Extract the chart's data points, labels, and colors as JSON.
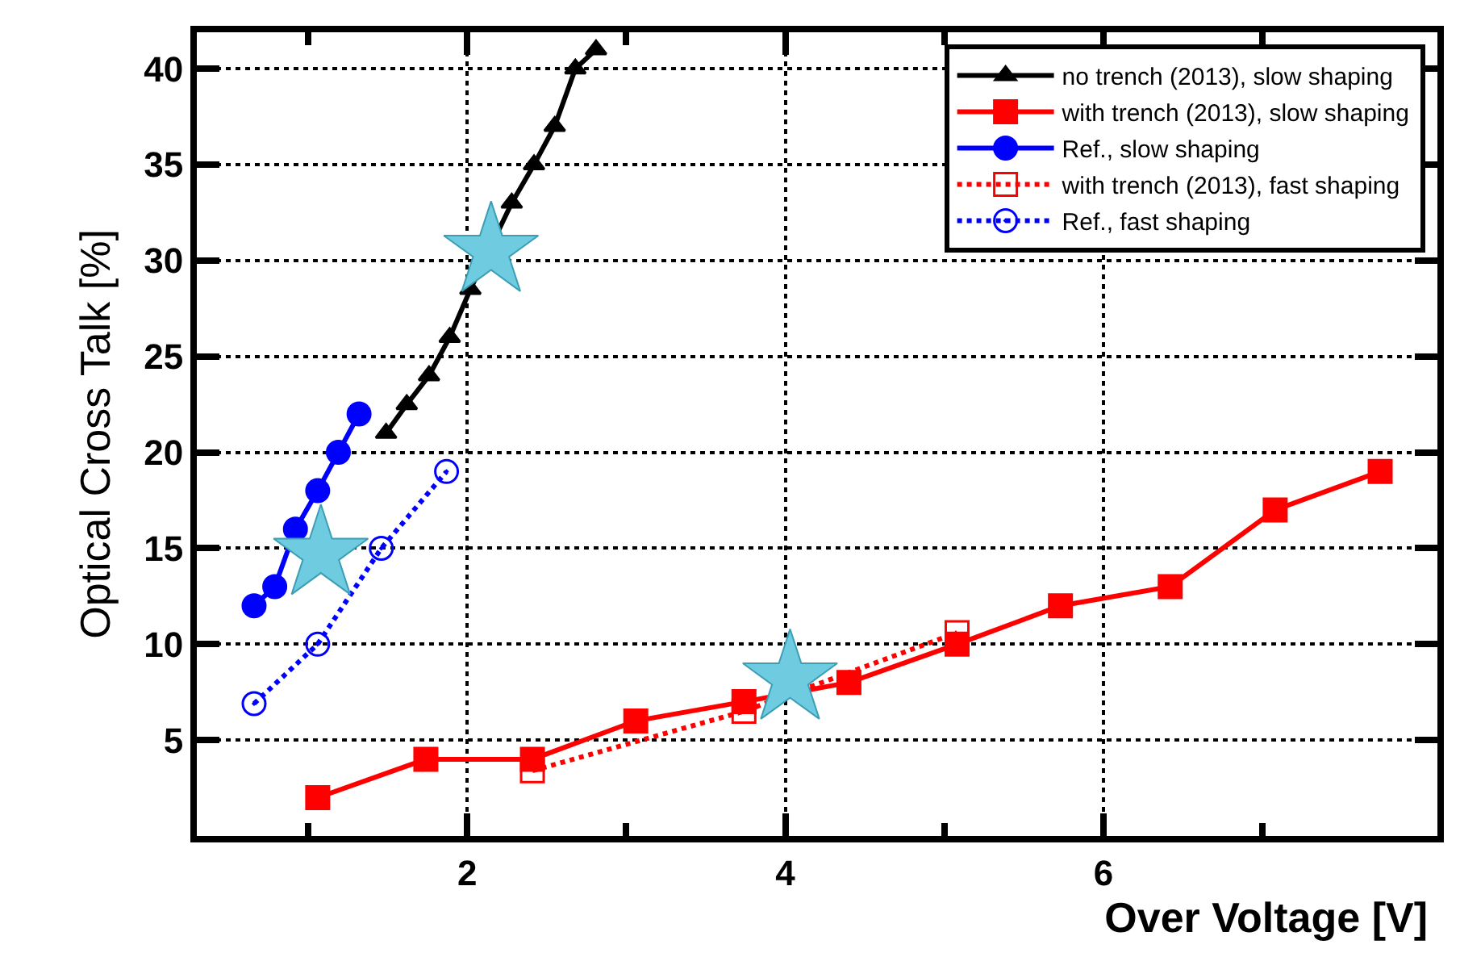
{
  "chart_data": {
    "type": "line",
    "xlabel": "Over Voltage [V]",
    "ylabel": "Optical Cross Talk [%]",
    "xlim": [
      0.3,
      8.1
    ],
    "xticks": [
      {
        "value": 1,
        "label": null
      },
      2,
      {
        "value": 3,
        "label": null
      },
      4,
      {
        "value": 5,
        "label": null
      },
      6,
      {
        "value": 7,
        "label": null
      }
    ],
    "ylim": [
      0,
      41.9
    ],
    "yticks": [
      5,
      10,
      15,
      20,
      25,
      30,
      35,
      40
    ],
    "grid": true,
    "legend": "top right",
    "series": [
      {
        "name": "no trench (2013), slow shaping",
        "color": "#000000",
        "marker": "triangle",
        "line_style": "solid",
        "x": [
          1.49,
          1.62,
          1.76,
          1.89,
          2.02,
          2.15,
          2.28,
          2.42,
          2.55,
          2.68,
          2.81
        ],
        "values": [
          21,
          22.5,
          24,
          26,
          28.5,
          null,
          33,
          35,
          37,
          40,
          41
        ]
      },
      {
        "name": "with trench (2013), slow shaping",
        "color": "#ff0000",
        "marker": "square",
        "line_style": "solid",
        "x": [
          1.06,
          1.74,
          2.41,
          3.06,
          3.74,
          4.4,
          5.08,
          5.73,
          6.42,
          7.08,
          7.74
        ],
        "values": [
          2,
          4,
          4,
          6,
          7,
          8,
          10,
          12,
          13,
          17,
          19
        ]
      },
      {
        "name": "Ref., slow shaping",
        "color": "#0000ff",
        "marker": "circle",
        "line_style": "solid",
        "x": [
          0.66,
          0.79,
          0.92,
          1.06,
          1.19,
          1.32
        ],
        "values": [
          12,
          13,
          16,
          18,
          20,
          22
        ]
      },
      {
        "name": "with trench (2013), fast shaping",
        "color": "#ff0000",
        "marker": "square-open",
        "line_style": "dotted",
        "x": [
          2.41,
          3.74,
          5.08
        ],
        "values": [
          3.4,
          6.5,
          10.6
        ]
      },
      {
        "name": "Ref., fast shaping",
        "color": "#0000ff",
        "marker": "circle-open",
        "line_style": "dotted",
        "x": [
          0.66,
          1.06,
          1.46,
          1.87
        ],
        "values": [
          6.9,
          10,
          15,
          19
        ]
      },
      {
        "type": "scatter",
        "color": "#6fcbe0",
        "marker": "star",
        "x": [
          2.15,
          1.08,
          4.03
        ],
        "values": [
          30.5,
          14.7,
          8.2
        ]
      }
    ]
  }
}
